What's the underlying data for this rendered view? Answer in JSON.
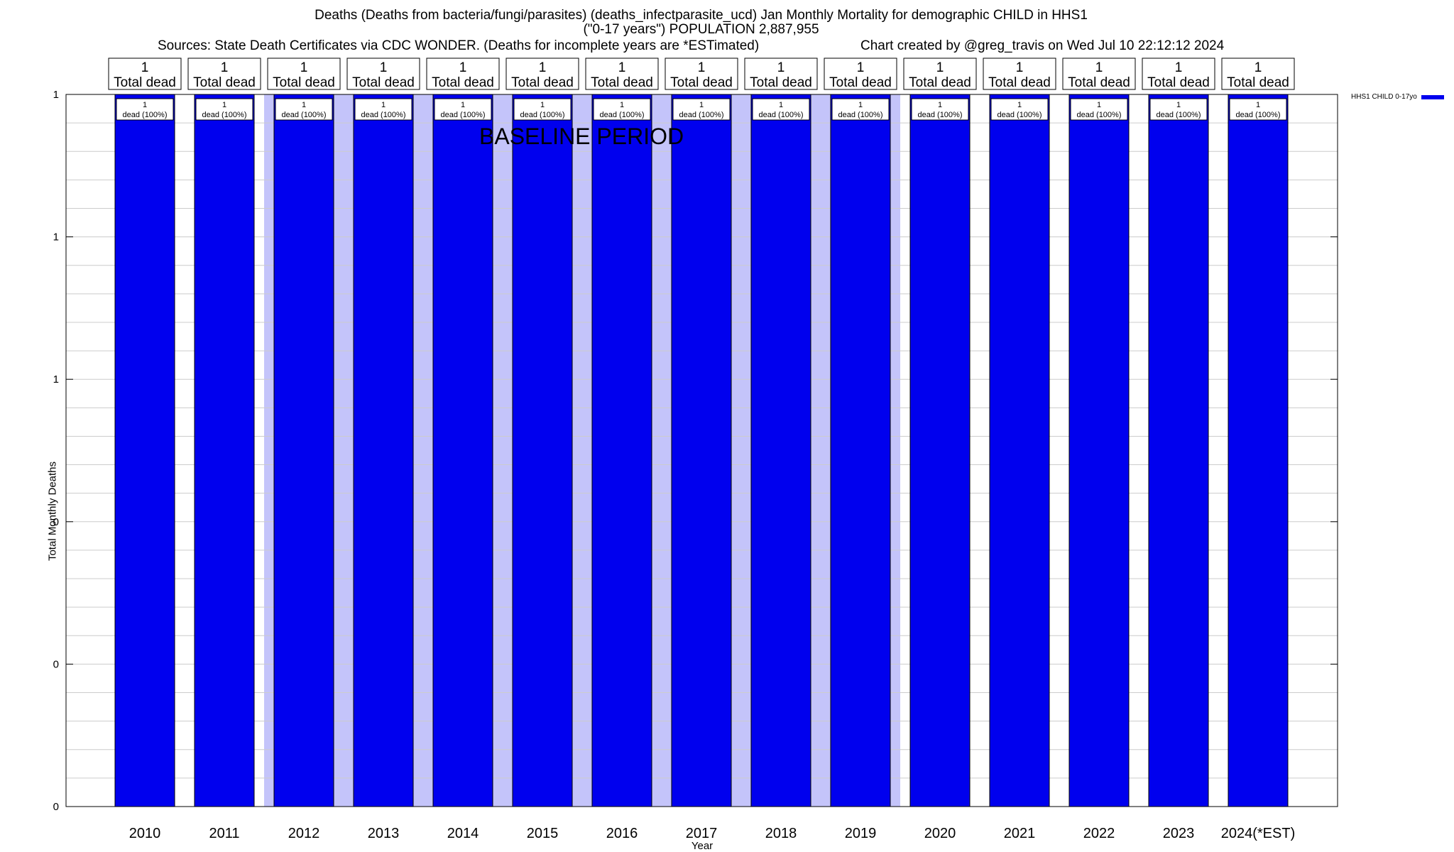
{
  "chart_data": {
    "type": "bar",
    "title": "Deaths (Deaths from bacteria/fungi/parasites) (deaths_infectparasite_ucd) Jan Monthly Mortality for demographic CHILD in HHS1",
    "subtitle": "(\"0-17 years\") POPULATION 2,887,955",
    "sources": "Sources: State Death Certificates via CDC WONDER. (Deaths for incomplete years are *ESTimated)",
    "credit": "Chart created by @greg_travis on Wed Jul 10 22:12:12 2024",
    "xlabel": "Year",
    "ylabel": "Total Monthly Deaths",
    "categories": [
      "2010",
      "2011",
      "2012",
      "2013",
      "2014",
      "2015",
      "2016",
      "2017",
      "2018",
      "2019",
      "2020",
      "2021",
      "2022",
      "2023",
      "2024(*EST)"
    ],
    "series": [
      {
        "name": "HHS1 CHILD 0-17yo",
        "color": "#0000ee",
        "values": [
          1,
          1,
          1,
          1,
          1,
          1,
          1,
          1,
          1,
          1,
          1,
          1,
          1,
          1,
          1
        ]
      }
    ],
    "ylim": [
      0,
      1
    ],
    "yticks": [
      {
        "value": 0,
        "label": "0"
      },
      {
        "value": 0.2,
        "label": "0"
      },
      {
        "value": 0.4,
        "label": "0"
      },
      {
        "value": 0.6,
        "label": "1"
      },
      {
        "value": 0.8,
        "label": "1"
      },
      {
        "value": 1.0,
        "label": "1"
      }
    ],
    "top_labels": [
      {
        "count": "1",
        "text": "Total dead"
      },
      {
        "count": "1",
        "text": "Total dead"
      },
      {
        "count": "1",
        "text": "Total dead"
      },
      {
        "count": "1",
        "text": "Total dead"
      },
      {
        "count": "1",
        "text": "Total dead"
      },
      {
        "count": "1",
        "text": "Total dead"
      },
      {
        "count": "1",
        "text": "Total dead"
      },
      {
        "count": "1",
        "text": "Total dead"
      },
      {
        "count": "1",
        "text": "Total dead"
      },
      {
        "count": "1",
        "text": "Total dead"
      },
      {
        "count": "1",
        "text": "Total dead"
      },
      {
        "count": "1",
        "text": "Total dead"
      },
      {
        "count": "1",
        "text": "Total dead"
      },
      {
        "count": "1",
        "text": "Total dead"
      },
      {
        "count": "1",
        "text": "Total dead"
      }
    ],
    "bar_labels": [
      {
        "count": "1",
        "text": "dead (100%)"
      },
      {
        "count": "1",
        "text": "dead (100%)"
      },
      {
        "count": "1",
        "text": "dead (100%)"
      },
      {
        "count": "1",
        "text": "dead (100%)"
      },
      {
        "count": "1",
        "text": "dead (100%)"
      },
      {
        "count": "1",
        "text": "dead (100%)"
      },
      {
        "count": "1",
        "text": "dead (100%)"
      },
      {
        "count": "1",
        "text": "dead (100%)"
      },
      {
        "count": "1",
        "text": "dead (100%)"
      },
      {
        "count": "1",
        "text": "dead (100%)"
      },
      {
        "count": "1",
        "text": "dead (100%)"
      },
      {
        "count": "1",
        "text": "dead (100%)"
      },
      {
        "count": "1",
        "text": "dead (100%)"
      },
      {
        "count": "1",
        "text": "dead (100%)"
      },
      {
        "count": "1",
        "text": "dead (100%)"
      }
    ],
    "baseline_period": {
      "label": "BASELINE PERIOD",
      "start": "2012",
      "end": "2019",
      "color": "#c4c4fa"
    },
    "legend_position": "top-right",
    "grid": true
  }
}
